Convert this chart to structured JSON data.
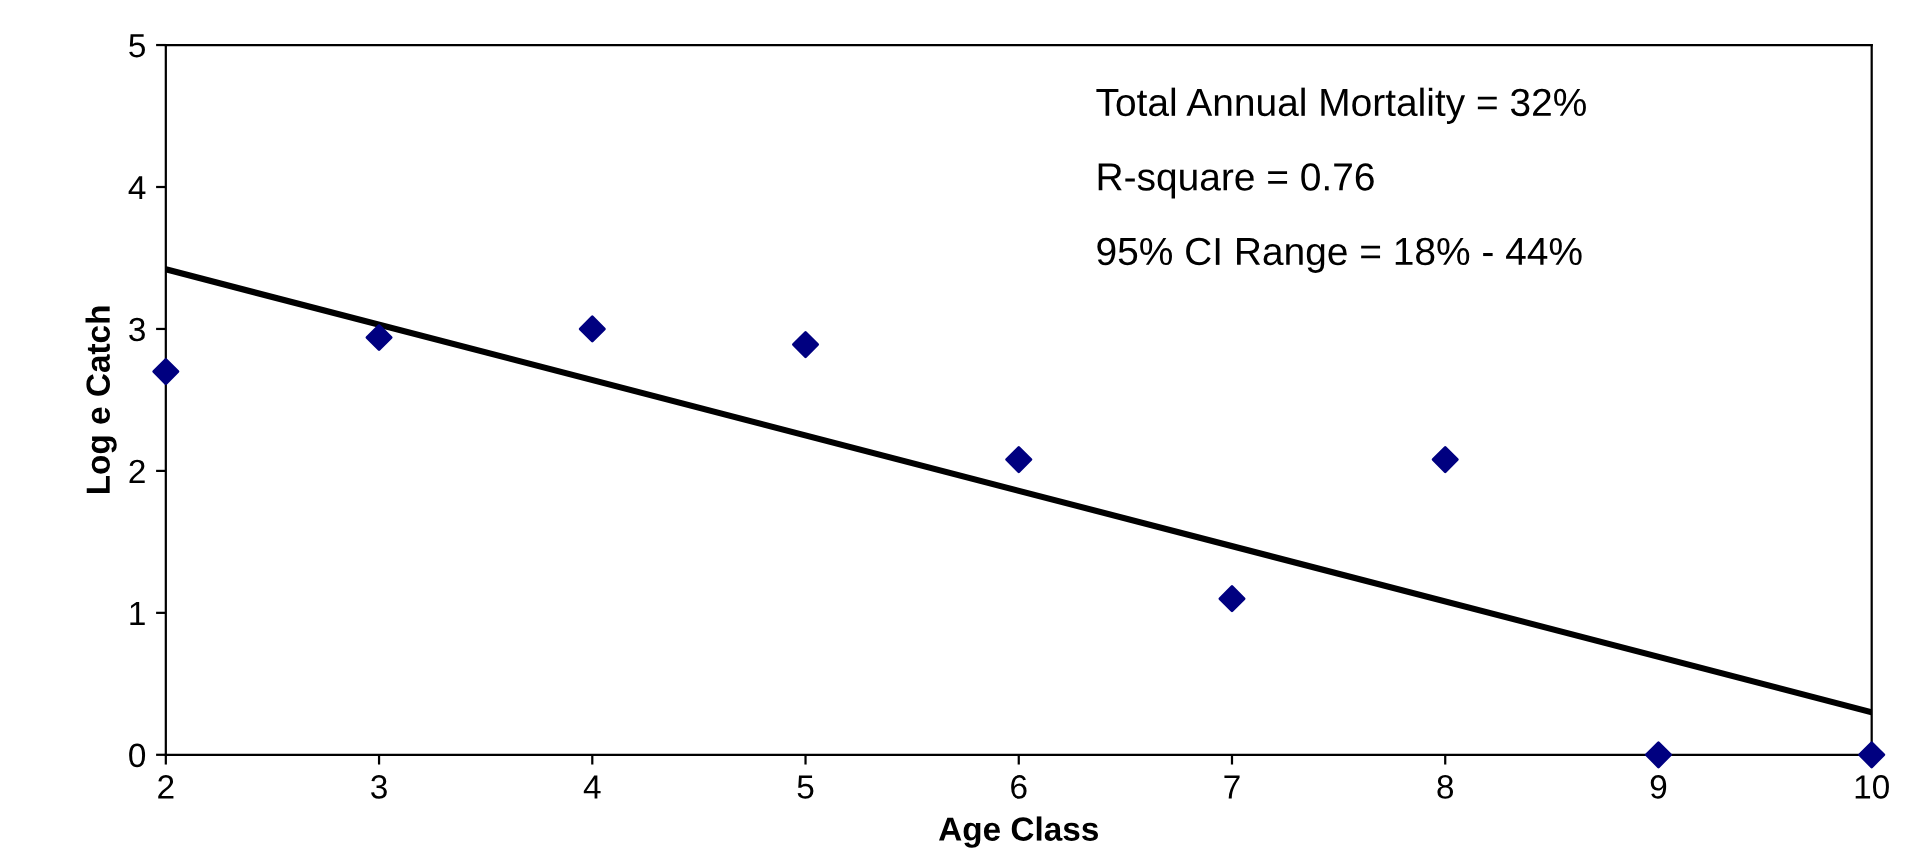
{
  "chart_data": {
    "type": "scatter",
    "xlabel": "Age Class",
    "ylabel": "Log e Catch",
    "xlim": [
      2,
      10
    ],
    "xticks": [
      2,
      3,
      4,
      5,
      6,
      7,
      8,
      9,
      10
    ],
    "ylim": [
      0,
      5
    ],
    "yticks": [
      0,
      1,
      2,
      3,
      4,
      5
    ],
    "grid": false,
    "legend": false,
    "series": [
      {
        "marker": "diamond",
        "color": "#000080",
        "x": [
          2,
          3,
          4,
          5,
          6,
          7,
          8,
          9,
          10
        ],
        "values": [
          2.7,
          2.94,
          3.0,
          2.89,
          2.08,
          1.1,
          2.08,
          0,
          0
        ]
      },
      {
        "type": "line",
        "marker": "none",
        "color": "#000000",
        "x": [
          2,
          10
        ],
        "values": [
          3.42,
          0.3
        ]
      }
    ],
    "annotations": [
      "Total Annual Mortality = 32%",
      "R-square = 0.76",
      "95% CI Range = 18% - 44%"
    ]
  }
}
